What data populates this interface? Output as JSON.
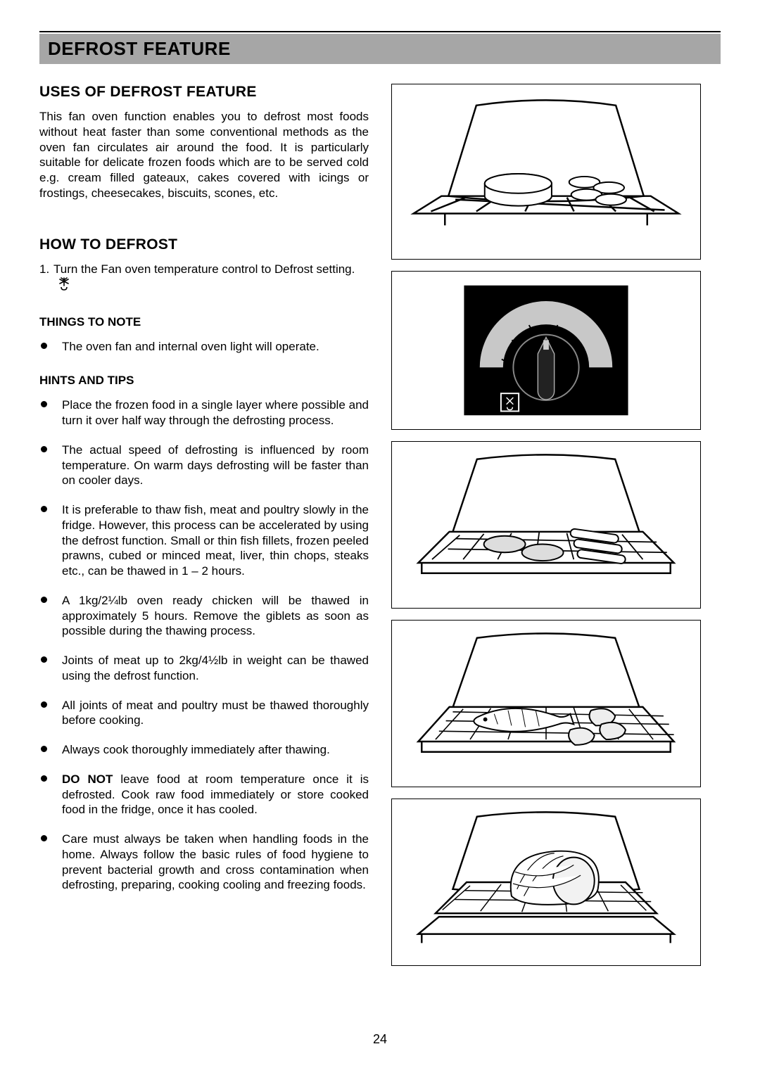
{
  "page_number": "24",
  "section_title": "DEFROST FEATURE",
  "uses": {
    "heading": "USES OF DEFROST FEATURE",
    "body": "This fan oven function enables you to defrost most foods without heat faster than some conventional methods as the oven fan circulates air around the food.  It is particularly suitable for delicate frozen foods which are to be served cold e.g. cream filled gateaux, cakes covered with icings or frostings, cheesecakes, biscuits, scones, etc."
  },
  "howto": {
    "heading": "HOW TO DEFROST",
    "step_num": "1.",
    "step_text": "Turn the Fan oven temperature control to Defrost setting."
  },
  "notes": {
    "heading": "THINGS TO NOTE",
    "items": [
      "The oven fan and internal oven light will operate."
    ]
  },
  "hints": {
    "heading": "HINTS AND TIPS",
    "items": [
      {
        "pre": "",
        "bold": "",
        "post": "Place the frozen food in a single layer where possible and turn it over half way through the defrosting process."
      },
      {
        "pre": "",
        "bold": "",
        "post": "The actual speed of defrosting is influenced by room temperature.  On warm days defrosting will be faster than on cooler days."
      },
      {
        "pre": "",
        "bold": "",
        "post": "It is preferable to thaw fish, meat and poultry slowly in the fridge.  However, this process can be accelerated by using the defrost function.  Small or thin fish fillets, frozen peeled prawns, cubed or minced meat, liver, thin chops, steaks etc., can be thawed in 1 – 2 hours."
      },
      {
        "pre": "",
        "bold": "",
        "post": "A 1kg/2¼lb oven ready chicken will be thawed in approximately 5 hours. Remove the giblets as soon as possible during the thawing process."
      },
      {
        "pre": "",
        "bold": "",
        "post": "Joints of meat up to 2kg/4½lb in weight can be thawed using the defrost function."
      },
      {
        "pre": "",
        "bold": "",
        "post": "All joints of meat and poultry must be thawed thoroughly before cooking."
      },
      {
        "pre": "",
        "bold": "",
        "post": "Always cook thoroughly immediately after thawing."
      },
      {
        "pre": "",
        "bold": "DO NOT",
        "post": " leave food at room temperature once it is defrosted.  Cook raw food immediately or store cooked food in the fridge, once it has cooled."
      },
      {
        "pre": "",
        "bold": "",
        "post": "Care must always be taken when handling foods in the home.  Always follow the basic rules of food hygiene to prevent bacterial growth and cross contamination when defrosting, preparing, cooking cooling and freezing foods."
      }
    ]
  },
  "figures": {
    "fig1_alt": "oven-rack-food-cake",
    "fig2_alt": "control-dial-defrost",
    "fig3_alt": "oven-rack-food-sausages",
    "fig4_alt": "oven-rack-fish-steaks",
    "fig5_alt": "oven-rack-meat-joint"
  },
  "colors": {
    "title_bar_bg": "#a6a6a6",
    "text": "#000000",
    "page_bg": "#ffffff",
    "dial_bg": "#000000",
    "dial_arc": "#c8c8c8"
  }
}
